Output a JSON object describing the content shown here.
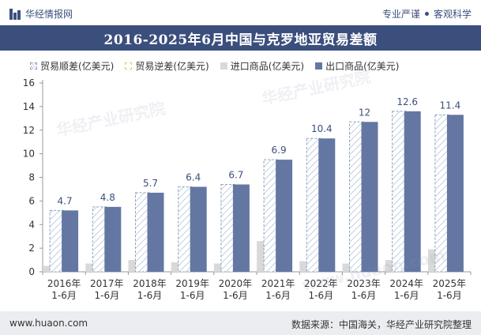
{
  "header": {
    "logo_text": "华经情报网",
    "slogan_left": "专业严谨",
    "slogan_right": "客观科学"
  },
  "chart_data": {
    "type": "bar",
    "title": "2016-2025年6月中国与克罗地亚贸易差额",
    "categories": [
      "2016年\n1-6月",
      "2017年\n1-6月",
      "2018年\n1-6月",
      "2019年\n1-6月",
      "2020年\n1-6月",
      "2021年\n1-6月",
      "2022年\n1-6月",
      "2023年\n1-6月",
      "2024年\n1-6月",
      "2025年\n1-6月"
    ],
    "series": [
      {
        "name": "贸易顺差(亿美元)",
        "values": [
          4.7,
          4.8,
          5.7,
          6.4,
          6.7,
          6.9,
          10.4,
          12,
          12.6,
          11.4
        ]
      },
      {
        "name": "贸易逆差(亿美元)",
        "values": [
          0,
          0,
          0,
          0,
          0,
          0,
          0,
          0,
          0,
          0
        ]
      },
      {
        "name": "进口商品(亿美元)",
        "values": [
          0.5,
          0.7,
          1.0,
          0.8,
          0.7,
          2.6,
          0.9,
          0.7,
          1.0,
          1.9
        ]
      },
      {
        "name": "出口商品(亿美元)",
        "values": [
          5.2,
          5.5,
          6.7,
          7.2,
          7.4,
          9.5,
          11.3,
          12.7,
          13.6,
          13.3
        ]
      }
    ],
    "data_labels": [
      "4.7",
      "4.8",
      "5.7",
      "6.4",
      "6.7",
      "6.9",
      "10.4",
      "12",
      "12.6",
      "11.4"
    ],
    "ylim": [
      0,
      16
    ],
    "yticks": [
      0,
      2,
      4,
      6,
      8,
      10,
      12,
      14,
      16
    ],
    "grid": false,
    "legend_position": "top-left",
    "colors": {
      "export": "#6477a2",
      "import": "#d9d9d9",
      "surplus_stroke": "#8ca0bd",
      "surplus_hatch": "#b9c6d8",
      "deficit_stroke": "#e0c27a",
      "axis": "#999999"
    }
  },
  "footer": {
    "site": "www.huaon.com",
    "source": "数据来源：中国海关，华经产业研究院整理"
  },
  "watermark": {
    "text_cn": "华经产业研究院",
    "text_en": "www.huaon.com"
  }
}
